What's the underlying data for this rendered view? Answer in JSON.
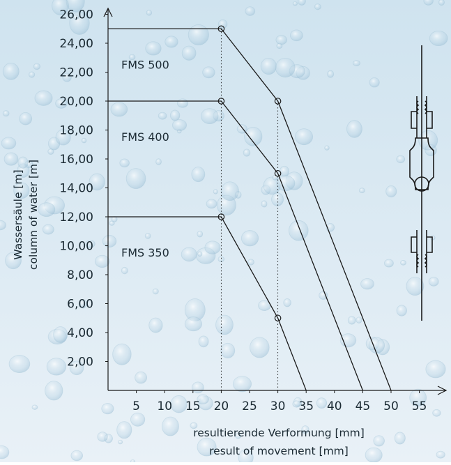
{
  "colors": {
    "background_top": "#cfe3ef",
    "background_bottom": "#e9f1f7",
    "line": "#1a1a1a",
    "text": "#1b2a33"
  },
  "chart_data": {
    "type": "line",
    "title": "",
    "ylabel": "Wassersäule [m]",
    "ylabel_2": "column of water [m]",
    "xlabel": "resultierende Verformung [mm]",
    "xlabel_2": "result of movement [mm]",
    "xlim": [
      0,
      57
    ],
    "ylim": [
      0,
      27
    ],
    "x_ticks": [
      5,
      10,
      15,
      20,
      25,
      30,
      35,
      40,
      45,
      50,
      55
    ],
    "x_tick_labels": [
      "5",
      "10",
      "15",
      "20",
      "25",
      "30",
      "35",
      "40",
      "45",
      "50",
      "55"
    ],
    "y_ticks": [
      2,
      4,
      6,
      8,
      10,
      12,
      14,
      16,
      18,
      20,
      22,
      24,
      26
    ],
    "y_tick_labels": [
      "2,00",
      "4,00",
      "6,00",
      "8,00",
      "10,00",
      "12,00",
      "14,00",
      "16,00",
      "18,00",
      "20,00",
      "22,00",
      "24,00",
      "26,00"
    ],
    "grid": false,
    "series": [
      {
        "name": "FMS 500",
        "x": [
          0,
          20,
          30,
          50
        ],
        "y": [
          25,
          25,
          20,
          0
        ],
        "markers": [
          [
            20,
            25
          ],
          [
            30,
            20
          ]
        ]
      },
      {
        "name": "FMS 400",
        "x": [
          0,
          20,
          30,
          45
        ],
        "y": [
          20,
          20,
          15,
          0
        ],
        "markers": [
          [
            20,
            20
          ],
          [
            30,
            15
          ]
        ]
      },
      {
        "name": "FMS 350",
        "x": [
          0,
          20,
          30,
          35
        ],
        "y": [
          12,
          12,
          5,
          0
        ],
        "markers": [
          [
            20,
            12
          ],
          [
            30,
            5
          ]
        ]
      }
    ],
    "dotted_x_guides": [
      20,
      30
    ]
  }
}
